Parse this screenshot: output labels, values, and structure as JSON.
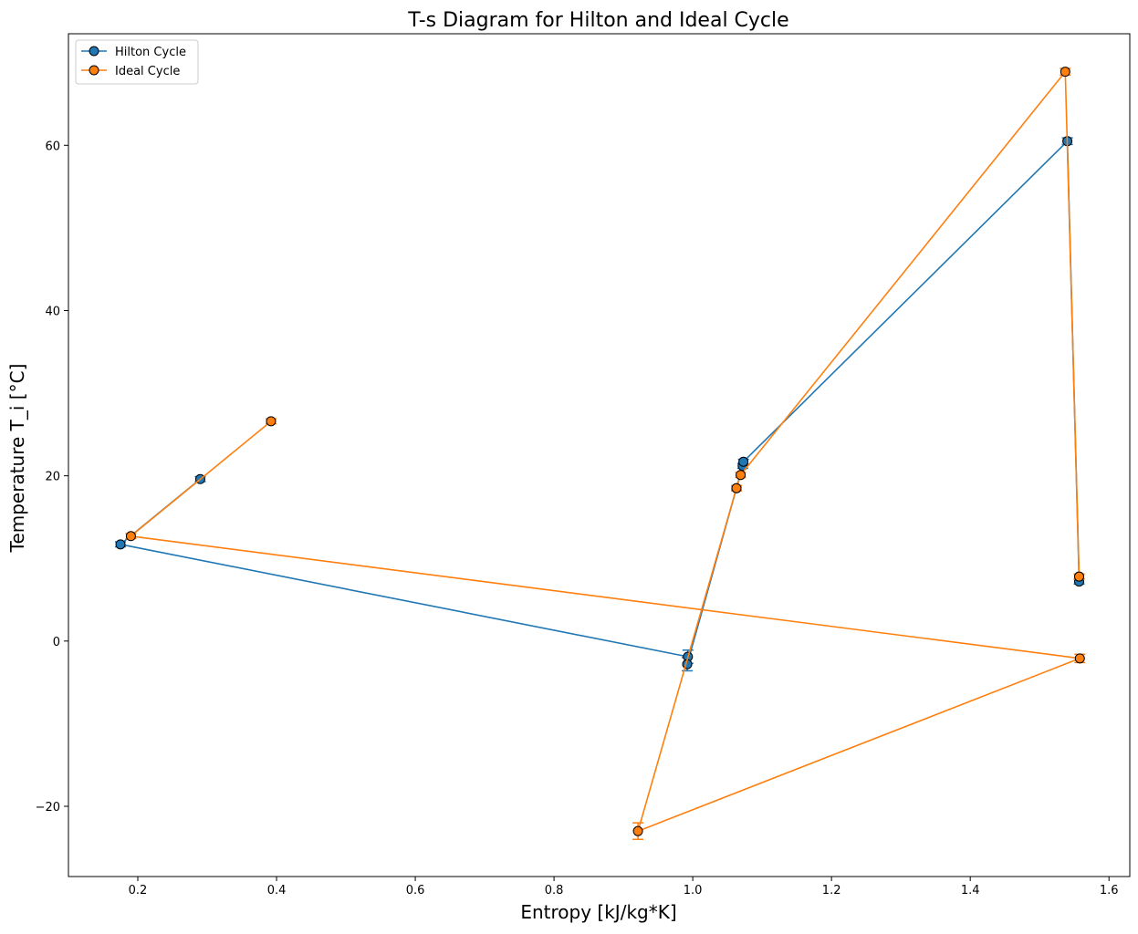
{
  "chart_data": {
    "type": "line",
    "title": "T-s Diagram for Hilton and Ideal Cycle",
    "xlabel": "Entropy [kJ/kg*K]",
    "ylabel": "Temperature T_i [°C]",
    "xlim": [
      0.1,
      1.63
    ],
    "ylim": [
      -28.5,
      73.5
    ],
    "xticks": [
      0.2,
      0.4,
      0.6,
      0.8,
      1.0,
      1.2,
      1.4,
      1.6
    ],
    "xtick_labels": [
      "0.2",
      "0.4",
      "0.6",
      "0.8",
      "1.0",
      "1.2",
      "1.4",
      "1.6"
    ],
    "yticks": [
      -20,
      0,
      20,
      40,
      60
    ],
    "ytick_labels": [
      "−20",
      "0",
      "20",
      "40",
      "60"
    ],
    "grid": false,
    "legend_position": "upper-left",
    "series": [
      {
        "name": "Hilton Cycle",
        "color": "#1f77b4",
        "x": [
          0.29,
          0.175,
          0.993,
          0.992,
          1.063,
          1.072,
          1.073,
          1.54,
          1.557,
          1.557
        ],
        "y": [
          19.6,
          11.7,
          -1.9,
          -2.8,
          18.5,
          21.2,
          21.7,
          60.5,
          7.2,
          7.8
        ],
        "y_err": [
          0.3,
          0.3,
          0.8,
          0.8,
          0.3,
          0.3,
          0.3,
          0.4,
          0.3,
          0.3
        ]
      },
      {
        "name": "Ideal Cycle",
        "color": "#ff7f0e",
        "x": [
          0.392,
          0.19,
          1.558,
          0.921,
          1.063,
          1.069,
          1.537,
          1.557
        ],
        "y": [
          26.6,
          12.7,
          -2.1,
          -23.0,
          18.5,
          20.1,
          68.9,
          7.8
        ],
        "y_err": [
          0.3,
          0.3,
          0.5,
          1.0,
          0.3,
          0.3,
          0.4,
          0.3
        ]
      }
    ]
  }
}
